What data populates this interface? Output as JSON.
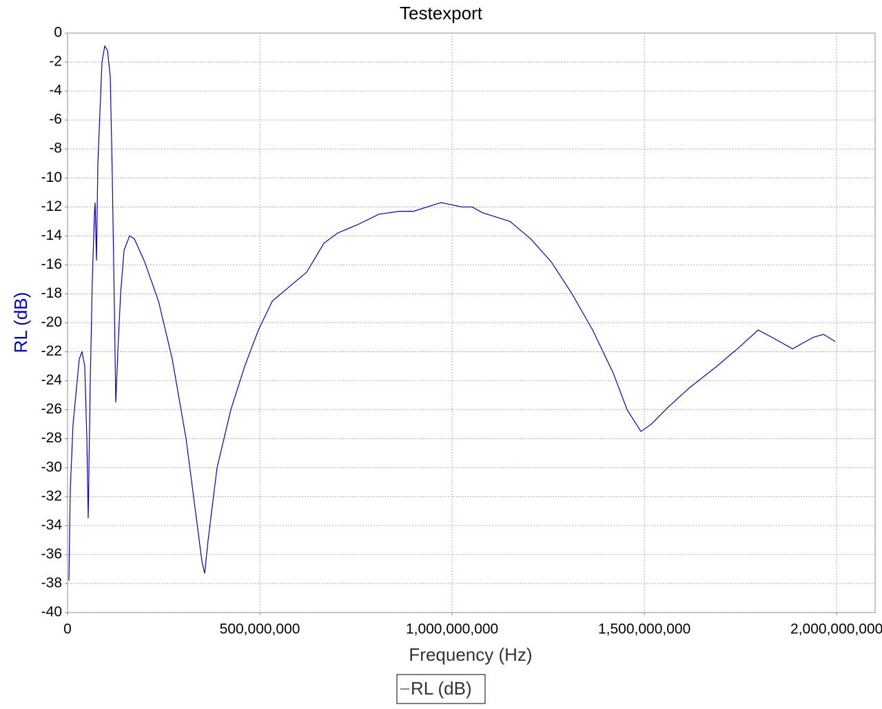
{
  "chart_data": {
    "type": "line",
    "title": "Testexport",
    "x_label": "Frequency (Hz)",
    "y_label": "RL (dB)",
    "xlim": [
      0,
      2100000000
    ],
    "ylim": [
      -40,
      0
    ],
    "xticks": [
      0,
      {
        "value": 500000000,
        "label": "500,000,000"
      },
      {
        "value": 1000000000,
        "label": "1,000,000,000"
      },
      {
        "value": 1500000000,
        "label": "1,500,000,000"
      },
      {
        "value": 2000000000,
        "label": "2,000,000,000"
      }
    ],
    "yticks": [
      0,
      -2,
      -4,
      -6,
      -8,
      -10,
      -12,
      -14,
      -16,
      -18,
      -20,
      -22,
      -24,
      -26,
      -28,
      -30,
      -32,
      -34,
      -36,
      -38,
      -40
    ],
    "grid": true,
    "legend": "bottom",
    "series": [
      {
        "name": "RL (dB)",
        "color": "#0000cc",
        "x": [
          3600000,
          7200000,
          14300000,
          21500000,
          30500000,
          37600000,
          44800000,
          50200000,
          53800000,
          59100000,
          64500000,
          69900000,
          71700000,
          75300000,
          78900000,
          84200000,
          89600000,
          96800000,
          103900000,
          111100000,
          116500000,
          121900000,
          125400000,
          130800000,
          138000000,
          147000000,
          161300000,
          173800000,
          200700000,
          236600000,
          272400000,
          308200000,
          335100000,
          349500000,
          356600000,
          365600000,
          388900000,
          424700000,
          460600000,
          496400000,
          532300000,
          577100000,
          621900000,
          666700000,
          702500000,
          756300000,
          810000000,
          863800000,
          899600000,
          971300000,
          1025100000,
          1052000000,
          1078900000,
          1150500000,
          1204300000,
          1258100000,
          1311800000,
          1365600000,
          1419400000,
          1455200000,
          1491000000,
          1517900000,
          1562700000,
          1616500000,
          1688200000,
          1741900000,
          1795700000,
          1831500000,
          1885300000,
          1939100000,
          1966000000,
          1996400000
        ],
        "values": [
          -37.8,
          -31.5,
          -27,
          -25,
          -22.5,
          -22,
          -23,
          -28,
          -33.5,
          -24,
          -17,
          -12.5,
          -11.7,
          -15.7,
          -9,
          -5.5,
          -2,
          -0.9,
          -1.2,
          -3,
          -10,
          -19,
          -25.5,
          -22,
          -18,
          -15,
          -14,
          -14.2,
          -15.8,
          -18.5,
          -22.5,
          -28,
          -33.5,
          -36.5,
          -37.3,
          -35,
          -30,
          -26,
          -23,
          -20.5,
          -18.5,
          -17.5,
          -16.5,
          -14.5,
          -13.8,
          -13.2,
          -12.5,
          -12.3,
          -12.3,
          -11.7,
          -12,
          -12,
          -12.4,
          -13,
          -14.2,
          -15.8,
          -18,
          -20.5,
          -23.5,
          -26,
          -27.5,
          -27,
          -25.8,
          -24.5,
          -23,
          -21.8,
          -20.5,
          -21,
          -21.8,
          -21,
          -20.8,
          -21.3
        ]
      }
    ]
  }
}
